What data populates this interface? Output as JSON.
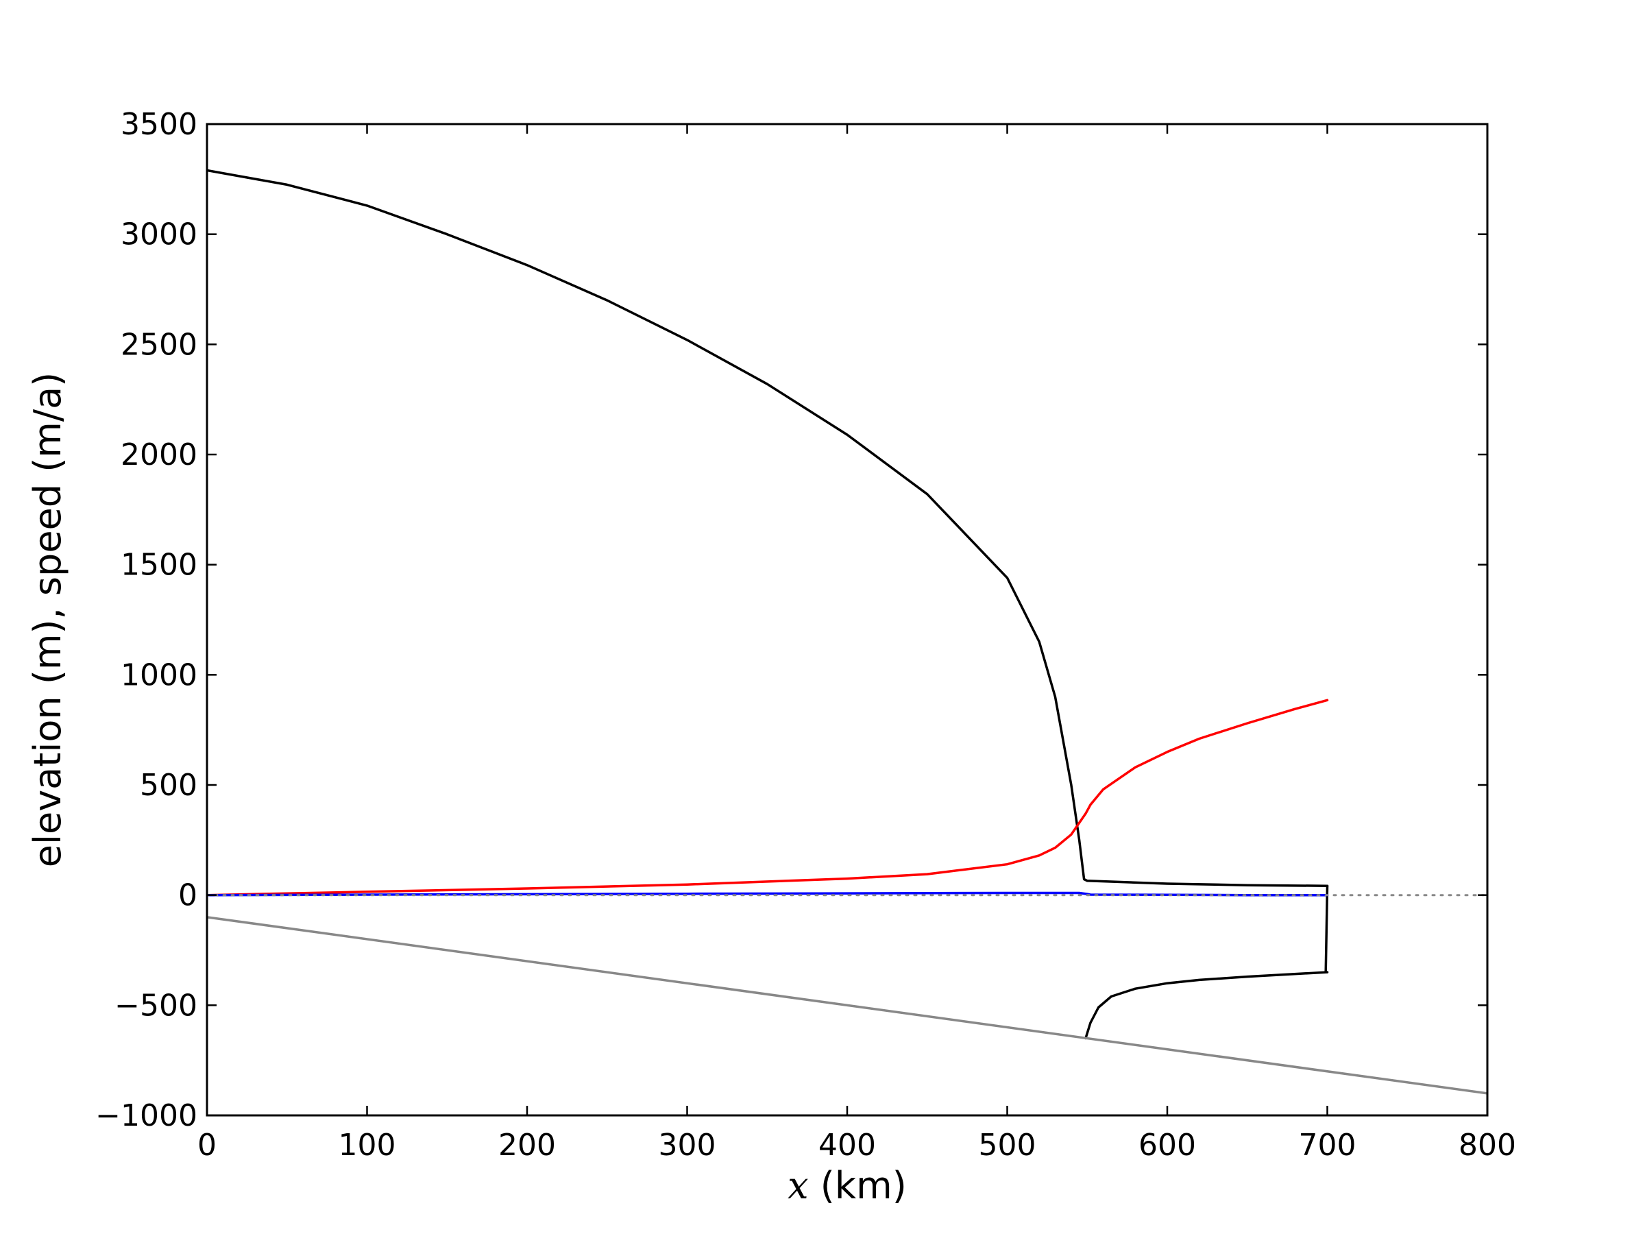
{
  "chart_data": {
    "type": "line",
    "title": "",
    "xlabel_var": "x",
    "xlabel_unit": " (km)",
    "ylabel": "elevation (m), speed (m/a)",
    "xlim": [
      0,
      800
    ],
    "ylim": [
      -1000,
      3500
    ],
    "xticks": [
      0,
      100,
      200,
      300,
      400,
      500,
      600,
      700,
      800
    ],
    "yticks": [
      -1000,
      -500,
      0,
      500,
      1000,
      1500,
      2000,
      2500,
      3000,
      3500
    ],
    "xtick_labels": [
      "0",
      "100",
      "200",
      "300",
      "400",
      "500",
      "600",
      "700",
      "800"
    ],
    "ytick_labels": [
      "−1000",
      "−500",
      "0",
      "500",
      "1000",
      "1500",
      "2000",
      "2500",
      "3000",
      "3500"
    ],
    "grid": false,
    "legend": "none",
    "series": [
      {
        "color": "#000000",
        "style": "solid",
        "x": [
          0,
          50,
          100,
          150,
          200,
          250,
          300,
          350,
          400,
          450,
          500,
          520,
          530,
          540,
          545,
          548,
          550,
          600,
          650,
          700
        ],
        "y": [
          3290,
          3225,
          3130,
          3000,
          2860,
          2700,
          2520,
          2320,
          2090,
          1820,
          1440,
          1150,
          900,
          500,
          250,
          72,
          65,
          52,
          45,
          42
        ]
      },
      {
        "color": "#000000",
        "style": "solid",
        "x": [
          700,
          699,
          700,
          650,
          620,
          600,
          580,
          565,
          557,
          552,
          549
        ],
        "y": [
          42,
          -350,
          -350,
          -370,
          -385,
          -400,
          -425,
          -460,
          -510,
          -580,
          -650
        ]
      },
      {
        "color": "#ff0000",
        "style": "solid",
        "x": [
          0,
          100,
          200,
          300,
          400,
          450,
          500,
          520,
          530,
          540,
          549,
          552,
          560,
          580,
          600,
          620,
          650,
          680,
          700
        ],
        "y": [
          0,
          15,
          30,
          48,
          75,
          95,
          140,
          180,
          215,
          275,
          370,
          410,
          480,
          580,
          650,
          710,
          780,
          845,
          885
        ]
      },
      {
        "color": "#0000ff",
        "style": "solid",
        "x": [
          0,
          100,
          200,
          300,
          400,
          500,
          545,
          550,
          552,
          600,
          650,
          700
        ],
        "y": [
          0,
          2,
          4,
          6,
          8,
          10,
          10,
          5,
          2,
          1,
          0,
          0
        ]
      },
      {
        "color": "#888888",
        "style": "solid",
        "x": [
          0,
          800
        ],
        "y": [
          -100,
          -900
        ]
      },
      {
        "color": "#888888",
        "style": "dotted",
        "x": [
          0,
          800
        ],
        "y": [
          0,
          0
        ]
      }
    ]
  }
}
